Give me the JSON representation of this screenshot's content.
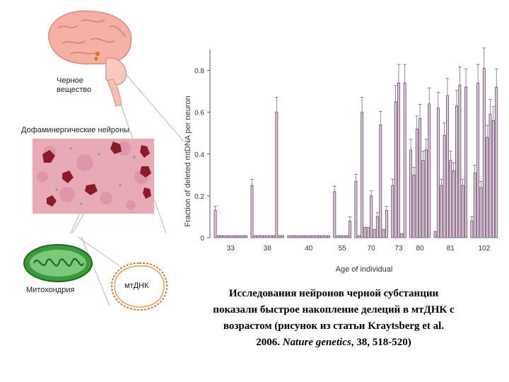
{
  "labels": {
    "substantia_nigra": "Черное вещество",
    "substantia_nigra_line1": "Черное",
    "substantia_nigra_line2": "вещество",
    "dopaminergic_neurons": "Дофаминергические нейроны",
    "mitochondrion": "Митохондрия",
    "mtdna": "мтДНК"
  },
  "caption": {
    "line1": "Исследования нейронов черной субстанции",
    "line2": "показали быстрое накопление делеций в мтДНК с",
    "line3": "возрастом (рисунок из статьи Kraytsberg et al.",
    "line4_prefix": "2006.",
    "journal": "Nature genetics",
    "line4_suffix": ", 38, 518-520)"
  },
  "colors": {
    "brain": "#f0a89a",
    "tissue": "#e8a9b7",
    "neuron_cell": "#8b1a2a",
    "mitochondrion": "#3a9a3a",
    "dna_loop": "#c97a3a",
    "bar_fill": "#d9c8d8",
    "bar_stroke": "#6a4a6a"
  },
  "chart_data": {
    "type": "bar",
    "ylabel": "Fraction of deleted mtDNA per neuron",
    "xlabel": "Age of individual",
    "ylim": [
      0,
      0.9
    ],
    "yticks": [
      "0",
      "0.2",
      "0.4",
      "0.6",
      "0.8"
    ],
    "ytick_values": [
      0,
      0.2,
      0.4,
      0.6,
      0.8
    ],
    "grid": false,
    "groups": [
      {
        "label": "33",
        "values": [
          0.13,
          0.01,
          0.01,
          0.01,
          0.01,
          0.01,
          0.01,
          0.01,
          0.01,
          0.01,
          0.01
        ]
      },
      {
        "label": "38",
        "values": [
          0.25,
          0.01,
          0.01,
          0.01,
          0.01,
          0.01,
          0.01,
          0.01,
          0.6,
          0.01,
          0.01
        ]
      },
      {
        "label": "40",
        "values": [
          0.01,
          0.01,
          0.01,
          0.01,
          0.01,
          0.01,
          0.01,
          0.01,
          0.01,
          0.01,
          0.01,
          0.01,
          0.01,
          0.01
        ]
      },
      {
        "label": "55",
        "values": [
          0.22,
          0.01,
          0.01,
          0.01,
          0.01,
          0.08
        ]
      },
      {
        "label": "70",
        "values": [
          0.27,
          0.01,
          0.6,
          0.05,
          0.05,
          0.2,
          0.04,
          0.1,
          0.54,
          0.04,
          0.13
        ]
      },
      {
        "label": "73",
        "values": [
          0.25,
          0.65,
          0.74,
          0.02,
          0.74
        ]
      },
      {
        "label": "80",
        "values": [
          0.42,
          0.3,
          0.52,
          0.57,
          0.37,
          0.42,
          0.64
        ]
      },
      {
        "label": "81",
        "values": [
          0.03,
          0.62,
          0.25,
          0.49,
          0.68,
          0.37,
          0.32,
          0.63,
          0.73,
          0.25,
          0.72
        ]
      },
      {
        "label": "102",
        "values": [
          0.08,
          0.31,
          0.74,
          0.24,
          0.81,
          0.48,
          0.59,
          0.56,
          0.72
        ]
      }
    ]
  }
}
